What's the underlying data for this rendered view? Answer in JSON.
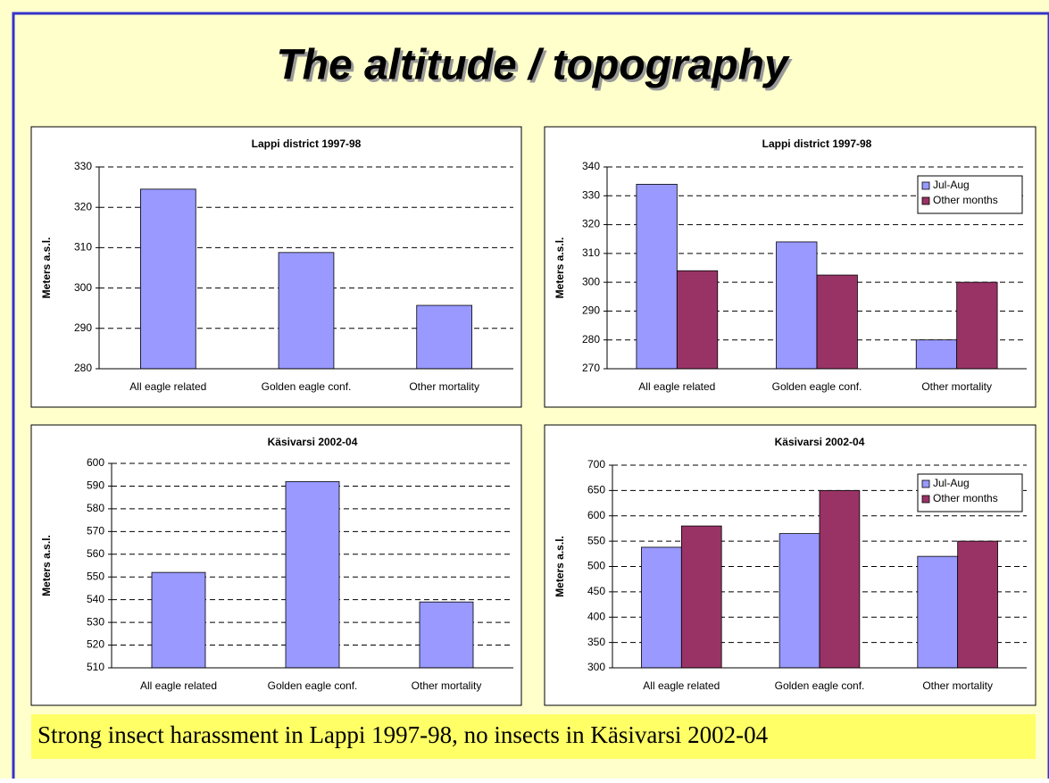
{
  "slide": {
    "title": "The altitude / topography",
    "note": "Strong insect harassment in Lappi 1997-98, no insects in Käsivarsi 2002-04"
  },
  "chart_data": [
    {
      "type": "bar",
      "title": "Lappi district 1997-98",
      "y_label": "Meters a.s.l.",
      "categories": [
        "All eagle related",
        "Golden eagle conf.",
        "Other mortality"
      ],
      "series": [
        {
          "color": "#9999ff",
          "values": [
            324.5,
            308.8,
            295.7
          ]
        }
      ],
      "ylim": [
        280,
        330
      ],
      "yticks": [
        280,
        290,
        300,
        310,
        320,
        330
      ],
      "grid": true
    },
    {
      "type": "bar",
      "title": "Lappi district 1997-98",
      "y_label": "Meters a.s.l.",
      "categories": [
        "All eagle related",
        "Golden eagle conf.",
        "Other mortality"
      ],
      "series": [
        {
          "name": "Jul-Aug",
          "color": "#9999ff",
          "values": [
            334,
            314,
            280
          ]
        },
        {
          "name": "Other months",
          "color": "#993366",
          "values": [
            304,
            302.5,
            300
          ]
        }
      ],
      "ylim": [
        270,
        340
      ],
      "yticks": [
        270,
        280,
        290,
        300,
        310,
        320,
        330,
        340
      ],
      "grid": true,
      "legend": "upper right"
    },
    {
      "type": "bar",
      "title": "Käsivarsi 2002-04",
      "y_label": "Meters a.s.l.",
      "categories": [
        "All eagle related",
        "Golden eagle conf.",
        "Other mortality"
      ],
      "series": [
        {
          "color": "#9999ff",
          "values": [
            552,
            592,
            539
          ]
        }
      ],
      "ylim": [
        510,
        600
      ],
      "yticks": [
        510,
        520,
        530,
        540,
        550,
        560,
        570,
        580,
        590,
        600
      ],
      "grid": true
    },
    {
      "type": "bar",
      "title": "Käsivarsi 2002-04",
      "y_label": "Meters a.s.l.",
      "categories": [
        "All eagle related",
        "Golden eagle conf.",
        "Other mortality"
      ],
      "series": [
        {
          "name": "Jul-Aug",
          "color": "#9999ff",
          "values": [
            538,
            565,
            520
          ]
        },
        {
          "name": "Other months",
          "color": "#993366",
          "values": [
            580,
            650,
            550
          ]
        }
      ],
      "ylim": [
        300,
        700
      ],
      "yticks": [
        300,
        350,
        400,
        450,
        500,
        550,
        600,
        650,
        700
      ],
      "grid": true,
      "legend": "upper right"
    }
  ]
}
